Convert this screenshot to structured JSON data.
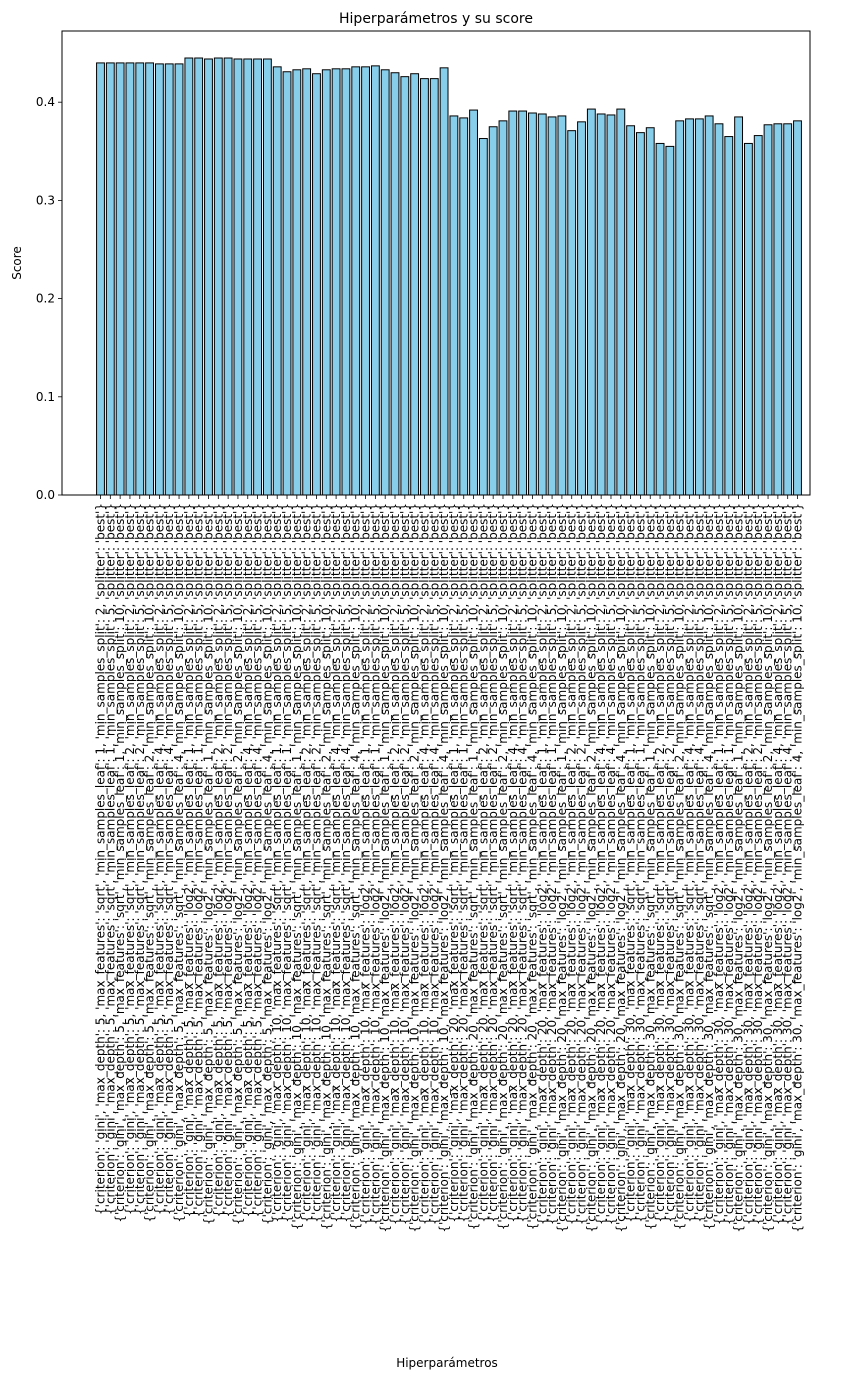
{
  "chart_data": {
    "type": "bar",
    "title": "Hiperparámetros y su score",
    "xlabel": "Hiperparámetros",
    "ylabel": "Score",
    "ylim": [
      0,
      0.4725
    ],
    "yticks": [
      "0.0",
      "0.1",
      "0.2",
      "0.3",
      "0.4"
    ],
    "ytick_values": [
      0,
      0.1,
      0.2,
      0.3,
      0.4
    ],
    "grid": false,
    "legend": "none",
    "bar_color": "#87CEEB",
    "edge_color": "#000000",
    "categories": [
      "{'criterion': 'gini', 'max_depth': 5, 'max_features': 'sqrt', 'min_samples_leaf': 1, 'min_samples_split': 2, 'splitter': 'best'}",
      "{'criterion': 'gini', 'max_depth': 5, 'max_features': 'sqrt', 'min_samples_leaf': 1, 'min_samples_split': 5, 'splitter': 'best'}",
      "{'criterion': 'gini', 'max_depth': 5, 'max_features': 'sqrt', 'min_samples_leaf': 1, 'min_samples_split': 10, 'splitter': 'best'}",
      "{'criterion': 'gini', 'max_depth': 5, 'max_features': 'sqrt', 'min_samples_leaf': 2, 'min_samples_split': 2, 'splitter': 'best'}",
      "{'criterion': 'gini', 'max_depth': 5, 'max_features': 'sqrt', 'min_samples_leaf': 2, 'min_samples_split': 5, 'splitter': 'best'}",
      "{'criterion': 'gini', 'max_depth': 5, 'max_features': 'sqrt', 'min_samples_leaf': 2, 'min_samples_split': 10, 'splitter': 'best'}",
      "{'criterion': 'gini', 'max_depth': 5, 'max_features': 'sqrt', 'min_samples_leaf': 4, 'min_samples_split': 2, 'splitter': 'best'}",
      "{'criterion': 'gini', 'max_depth': 5, 'max_features': 'sqrt', 'min_samples_leaf': 4, 'min_samples_split': 5, 'splitter': 'best'}",
      "{'criterion': 'gini', 'max_depth': 5, 'max_features': 'sqrt', 'min_samples_leaf': 4, 'min_samples_split': 10, 'splitter': 'best'}",
      "{'criterion': 'gini', 'max_depth': 5, 'max_features': 'log2', 'min_samples_leaf': 1, 'min_samples_split': 2, 'splitter': 'best'}",
      "{'criterion': 'gini', 'max_depth': 5, 'max_features': 'log2', 'min_samples_leaf': 1, 'min_samples_split': 5, 'splitter': 'best'}",
      "{'criterion': 'gini', 'max_depth': 5, 'max_features': 'log2', 'min_samples_leaf': 1, 'min_samples_split': 10, 'splitter': 'best'}",
      "{'criterion': 'gini', 'max_depth': 5, 'max_features': 'log2', 'min_samples_leaf': 2, 'min_samples_split': 2, 'splitter': 'best'}",
      "{'criterion': 'gini', 'max_depth': 5, 'max_features': 'log2', 'min_samples_leaf': 2, 'min_samples_split': 5, 'splitter': 'best'}",
      "{'criterion': 'gini', 'max_depth': 5, 'max_features': 'log2', 'min_samples_leaf': 2, 'min_samples_split': 10, 'splitter': 'best'}",
      "{'criterion': 'gini', 'max_depth': 5, 'max_features': 'log2', 'min_samples_leaf': 4, 'min_samples_split': 2, 'splitter': 'best'}",
      "{'criterion': 'gini', 'max_depth': 5, 'max_features': 'log2', 'min_samples_leaf': 4, 'min_samples_split': 5, 'splitter': 'best'}",
      "{'criterion': 'gini', 'max_depth': 5, 'max_features': 'log2', 'min_samples_leaf': 4, 'min_samples_split': 10, 'splitter': 'best'}",
      "{'criterion': 'gini', 'max_depth': 10, 'max_features': 'sqrt', 'min_samples_leaf': 1, 'min_samples_split': 2, 'splitter': 'best'}",
      "{'criterion': 'gini', 'max_depth': 10, 'max_features': 'sqrt', 'min_samples_leaf': 1, 'min_samples_split': 5, 'splitter': 'best'}",
      "{'criterion': 'gini', 'max_depth': 10, 'max_features': 'sqrt', 'min_samples_leaf': 1, 'min_samples_split': 10, 'splitter': 'best'}",
      "{'criterion': 'gini', 'max_depth': 10, 'max_features': 'sqrt', 'min_samples_leaf': 2, 'min_samples_split': 2, 'splitter': 'best'}",
      "{'criterion': 'gini', 'max_depth': 10, 'max_features': 'sqrt', 'min_samples_leaf': 2, 'min_samples_split': 5, 'splitter': 'best'}",
      "{'criterion': 'gini', 'max_depth': 10, 'max_features': 'sqrt', 'min_samples_leaf': 2, 'min_samples_split': 10, 'splitter': 'best'}",
      "{'criterion': 'gini', 'max_depth': 10, 'max_features': 'sqrt', 'min_samples_leaf': 4, 'min_samples_split': 2, 'splitter': 'best'}",
      "{'criterion': 'gini', 'max_depth': 10, 'max_features': 'sqrt', 'min_samples_leaf': 4, 'min_samples_split': 5, 'splitter': 'best'}",
      "{'criterion': 'gini', 'max_depth': 10, 'max_features': 'sqrt', 'min_samples_leaf': 4, 'min_samples_split': 10, 'splitter': 'best'}",
      "{'criterion': 'gini', 'max_depth': 10, 'max_features': 'log2', 'min_samples_leaf': 1, 'min_samples_split': 2, 'splitter': 'best'}",
      "{'criterion': 'gini', 'max_depth': 10, 'max_features': 'log2', 'min_samples_leaf': 1, 'min_samples_split': 5, 'splitter': 'best'}",
      "{'criterion': 'gini', 'max_depth': 10, 'max_features': 'log2', 'min_samples_leaf': 1, 'min_samples_split': 10, 'splitter': 'best'}",
      "{'criterion': 'gini', 'max_depth': 10, 'max_features': 'log2', 'min_samples_leaf': 2, 'min_samples_split': 2, 'splitter': 'best'}",
      "{'criterion': 'gini', 'max_depth': 10, 'max_features': 'log2', 'min_samples_leaf': 2, 'min_samples_split': 5, 'splitter': 'best'}",
      "{'criterion': 'gini', 'max_depth': 10, 'max_features': 'log2', 'min_samples_leaf': 2, 'min_samples_split': 10, 'splitter': 'best'}",
      "{'criterion': 'gini', 'max_depth': 10, 'max_features': 'log2', 'min_samples_leaf': 4, 'min_samples_split': 2, 'splitter': 'best'}",
      "{'criterion': 'gini', 'max_depth': 10, 'max_features': 'log2', 'min_samples_leaf': 4, 'min_samples_split': 5, 'splitter': 'best'}",
      "{'criterion': 'gini', 'max_depth': 10, 'max_features': 'log2', 'min_samples_leaf': 4, 'min_samples_split': 10, 'splitter': 'best'}",
      "{'criterion': 'gini', 'max_depth': 20, 'max_features': 'sqrt', 'min_samples_leaf': 1, 'min_samples_split': 2, 'splitter': 'best'}",
      "{'criterion': 'gini', 'max_depth': 20, 'max_features': 'sqrt', 'min_samples_leaf': 1, 'min_samples_split': 5, 'splitter': 'best'}",
      "{'criterion': 'gini', 'max_depth': 20, 'max_features': 'sqrt', 'min_samples_leaf': 1, 'min_samples_split': 10, 'splitter': 'best'}",
      "{'criterion': 'gini', 'max_depth': 20, 'max_features': 'sqrt', 'min_samples_leaf': 2, 'min_samples_split': 2, 'splitter': 'best'}",
      "{'criterion': 'gini', 'max_depth': 20, 'max_features': 'sqrt', 'min_samples_leaf': 2, 'min_samples_split': 5, 'splitter': 'best'}",
      "{'criterion': 'gini', 'max_depth': 20, 'max_features': 'sqrt', 'min_samples_leaf': 2, 'min_samples_split': 10, 'splitter': 'best'}",
      "{'criterion': 'gini', 'max_depth': 20, 'max_features': 'sqrt', 'min_samples_leaf': 4, 'min_samples_split': 2, 'splitter': 'best'}",
      "{'criterion': 'gini', 'max_depth': 20, 'max_features': 'sqrt', 'min_samples_leaf': 4, 'min_samples_split': 5, 'splitter': 'best'}",
      "{'criterion': 'gini', 'max_depth': 20, 'max_features': 'sqrt', 'min_samples_leaf': 4, 'min_samples_split': 10, 'splitter': 'best'}",
      "{'criterion': 'gini', 'max_depth': 20, 'max_features': 'log2', 'min_samples_leaf': 1, 'min_samples_split': 2, 'splitter': 'best'}",
      "{'criterion': 'gini', 'max_depth': 20, 'max_features': 'log2', 'min_samples_leaf': 1, 'min_samples_split': 5, 'splitter': 'best'}",
      "{'criterion': 'gini', 'max_depth': 20, 'max_features': 'log2', 'min_samples_leaf': 1, 'min_samples_split': 10, 'splitter': 'best'}",
      "{'criterion': 'gini', 'max_depth': 20, 'max_features': 'log2', 'min_samples_leaf': 2, 'min_samples_split': 2, 'splitter': 'best'}",
      "{'criterion': 'gini', 'max_depth': 20, 'max_features': 'log2', 'min_samples_leaf': 2, 'min_samples_split': 5, 'splitter': 'best'}",
      "{'criterion': 'gini', 'max_depth': 20, 'max_features': 'log2', 'min_samples_leaf': 2, 'min_samples_split': 10, 'splitter': 'best'}",
      "{'criterion': 'gini', 'max_depth': 20, 'max_features': 'log2', 'min_samples_leaf': 4, 'min_samples_split': 2, 'splitter': 'best'}",
      "{'criterion': 'gini', 'max_depth': 20, 'max_features': 'log2', 'min_samples_leaf': 4, 'min_samples_split': 5, 'splitter': 'best'}",
      "{'criterion': 'gini', 'max_depth': 20, 'max_features': 'log2', 'min_samples_leaf': 4, 'min_samples_split': 10, 'splitter': 'best'}",
      "{'criterion': 'gini', 'max_depth': 30, 'max_features': 'sqrt', 'min_samples_leaf': 1, 'min_samples_split': 2, 'splitter': 'best'}",
      "{'criterion': 'gini', 'max_depth': 30, 'max_features': 'sqrt', 'min_samples_leaf': 1, 'min_samples_split': 5, 'splitter': 'best'}",
      "{'criterion': 'gini', 'max_depth': 30, 'max_features': 'sqrt', 'min_samples_leaf': 1, 'min_samples_split': 10, 'splitter': 'best'}",
      "{'criterion': 'gini', 'max_depth': 30, 'max_features': 'sqrt', 'min_samples_leaf': 2, 'min_samples_split': 2, 'splitter': 'best'}",
      "{'criterion': 'gini', 'max_depth': 30, 'max_features': 'sqrt', 'min_samples_leaf': 2, 'min_samples_split': 5, 'splitter': 'best'}",
      "{'criterion': 'gini', 'max_depth': 30, 'max_features': 'sqrt', 'min_samples_leaf': 2, 'min_samples_split': 10, 'splitter': 'best'}",
      "{'criterion': 'gini', 'max_depth': 30, 'max_features': 'sqrt', 'min_samples_leaf': 4, 'min_samples_split': 2, 'splitter': 'best'}",
      "{'criterion': 'gini', 'max_depth': 30, 'max_features': 'sqrt', 'min_samples_leaf': 4, 'min_samples_split': 5, 'splitter': 'best'}",
      "{'criterion': 'gini', 'max_depth': 30, 'max_features': 'sqrt', 'min_samples_leaf': 4, 'min_samples_split': 10, 'splitter': 'best'}",
      "{'criterion': 'gini', 'max_depth': 30, 'max_features': 'log2', 'min_samples_leaf': 1, 'min_samples_split': 2, 'splitter': 'best'}",
      "{'criterion': 'gini', 'max_depth': 30, 'max_features': 'log2', 'min_samples_leaf': 1, 'min_samples_split': 5, 'splitter': 'best'}",
      "{'criterion': 'gini', 'max_depth': 30, 'max_features': 'log2', 'min_samples_leaf': 1, 'min_samples_split': 10, 'splitter': 'best'}",
      "{'criterion': 'gini', 'max_depth': 30, 'max_features': 'log2', 'min_samples_leaf': 2, 'min_samples_split': 2, 'splitter': 'best'}",
      "{'criterion': 'gini', 'max_depth': 30, 'max_features': 'log2', 'min_samples_leaf': 2, 'min_samples_split': 5, 'splitter': 'best'}",
      "{'criterion': 'gini', 'max_depth': 30, 'max_features': 'log2', 'min_samples_leaf': 2, 'min_samples_split': 10, 'splitter': 'best'}",
      "{'criterion': 'gini', 'max_depth': 30, 'max_features': 'log2', 'min_samples_leaf': 4, 'min_samples_split': 2, 'splitter': 'best'}",
      "{'criterion': 'gini', 'max_depth': 30, 'max_features': 'log2', 'min_samples_leaf': 4, 'min_samples_split': 5, 'splitter': 'best'}",
      "{'criterion': 'gini', 'max_depth': 30, 'max_features': 'log2', 'min_samples_leaf': 4, 'min_samples_split': 10, 'splitter': 'best'}"
    ],
    "values": [
      0.44,
      0.44,
      0.44,
      0.44,
      0.44,
      0.44,
      0.439,
      0.439,
      0.439,
      0.445,
      0.445,
      0.444,
      0.445,
      0.445,
      0.444,
      0.444,
      0.444,
      0.444,
      0.436,
      0.431,
      0.433,
      0.434,
      0.429,
      0.433,
      0.434,
      0.434,
      0.436,
      0.436,
      0.437,
      0.433,
      0.43,
      0.426,
      0.429,
      0.424,
      0.424,
      0.435,
      0.386,
      0.384,
      0.392,
      0.363,
      0.375,
      0.381,
      0.391,
      0.391,
      0.389,
      0.388,
      0.385,
      0.386,
      0.371,
      0.38,
      0.393,
      0.388,
      0.387,
      0.393,
      0.376,
      0.369,
      0.374,
      0.358,
      0.355,
      0.381,
      0.383,
      0.383,
      0.386,
      0.378,
      0.365,
      0.385,
      0.358,
      0.366,
      0.377,
      0.378,
      0.378,
      0.381
    ]
  }
}
